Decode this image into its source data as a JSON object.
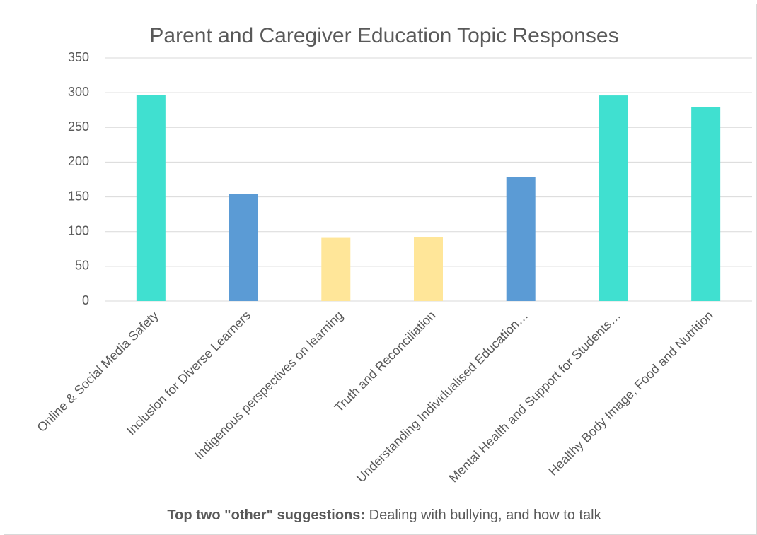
{
  "chart_data": {
    "type": "bar",
    "title": "Parent and Caregiver Education Topic Responses",
    "categories": [
      "Online & Social Media Safety",
      "Inclusion for Diverse Learners",
      "Indigenous perspectives on learning",
      "Truth and Reconciliation",
      "Understanding Individualised Education…",
      "Mental Health and Support for Students…",
      "Healthy Body Image, Food and Nutrition"
    ],
    "values": [
      297,
      154,
      91,
      92,
      179,
      296,
      279
    ],
    "colors": [
      "#40e0d0",
      "#5b9bd5",
      "#ffe699",
      "#ffe699",
      "#5b9bd5",
      "#40e0d0",
      "#40e0d0"
    ],
    "ylim": [
      0,
      350
    ],
    "yticks": [
      0,
      50,
      100,
      150,
      200,
      250,
      300,
      350
    ],
    "grid": true,
    "annotation": {
      "bold": "Top two \"other\" suggestions:",
      "text": " Dealing with bullying, and how to talk"
    }
  }
}
